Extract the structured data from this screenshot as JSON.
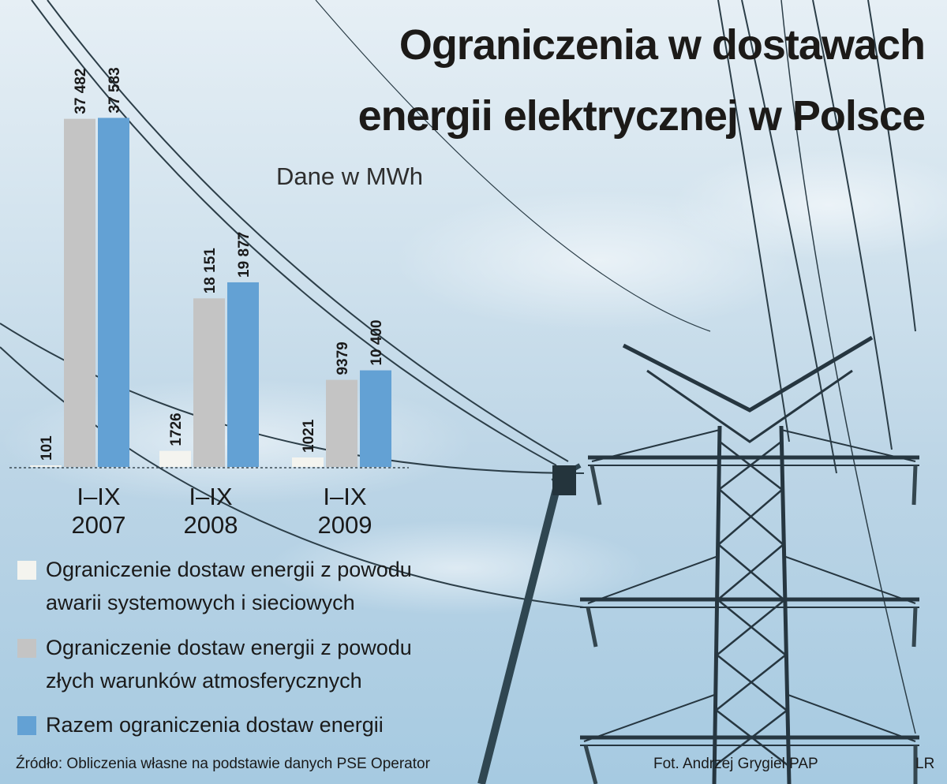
{
  "title_line1": "Ograniczenia w dostawach",
  "title_line2": "energii elektrycznej w Polsce",
  "subtitle": "Dane w MWh",
  "chart_data": {
    "type": "bar",
    "title": "Ograniczenia w dostawach energii elektrycznej w Polsce",
    "unit": "Dane w MWh",
    "categories": [
      {
        "period": "I–IX",
        "year": "2007"
      },
      {
        "period": "I–IX",
        "year": "2008"
      },
      {
        "period": "I–IX",
        "year": "2009"
      }
    ],
    "series": [
      {
        "name": "Ograniczenie dostaw energii z powodu awarii systemowych i sieciowych",
        "color": "#f4f4ef",
        "values": [
          101,
          1726,
          1021
        ],
        "labels": [
          "101",
          "1726",
          "1021"
        ]
      },
      {
        "name": "Ograniczenie dostaw energii z powodu złych warunków atmosferycznych",
        "color": "#c4c4c4",
        "values": [
          37482,
          18151,
          9379
        ],
        "labels": [
          "37 482",
          "18 151",
          "9379"
        ]
      },
      {
        "name": "Razem ograniczenia dostaw energii",
        "color": "#63a1d4",
        "values": [
          37583,
          19877,
          10400
        ],
        "labels": [
          "37 583",
          "19 877",
          "10 400"
        ]
      }
    ],
    "ylim": [
      0,
      40000
    ],
    "grid": false,
    "legend_position": "bottom-left"
  },
  "legend": [
    {
      "line1": "Ograniczenie dostaw energii z powodu",
      "line2": "awarii systemowych i sieciowych",
      "color": "#f4f4ef"
    },
    {
      "line1": "Ograniczenie dostaw energii z powodu",
      "line2": "złych warunków atmosferycznych",
      "color": "#c4c4c4"
    },
    {
      "line1": "Razem ograniczenia dostaw energii",
      "line2": "",
      "color": "#63a1d4"
    }
  ],
  "footer": {
    "source": "Źródło: Obliczenia własne na podstawie danych PSE Operator",
    "photo_credit": "Fot. Andrzej Grygiel PAP",
    "initials": "LR"
  },
  "background": {
    "sky_color": "#b9d4e6",
    "structure_color": "#2c3e48"
  }
}
